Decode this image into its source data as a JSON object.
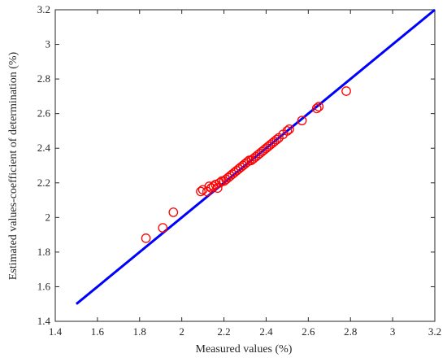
{
  "chart_data": {
    "type": "scatter",
    "title": "",
    "xlabel": "Measured values (%)",
    "ylabel": "Estimated values-coefficient of determination (%)",
    "xlim": [
      1.4,
      3.2
    ],
    "ylim": [
      1.4,
      3.2
    ],
    "xticks": [
      "1.4",
      "1.6",
      "1.8",
      "2",
      "2.2",
      "2.4",
      "2.6",
      "2.8",
      "3",
      "3.2"
    ],
    "yticks": [
      "1.4",
      "1.6",
      "1.8",
      "2",
      "2.2",
      "2.4",
      "2.6",
      "2.8",
      "3",
      "3.2"
    ],
    "grid": false,
    "legend": "none",
    "colors": {
      "points": "#ff0000",
      "line": "#0000ff",
      "axes": "#262626"
    },
    "line": {
      "x": [
        1.5,
        3.2
      ],
      "y": [
        1.5,
        3.2
      ]
    },
    "points": {
      "x": [
        1.83,
        1.91,
        1.96,
        2.09,
        2.1,
        2.12,
        2.13,
        2.14,
        2.15,
        2.16,
        2.17,
        2.18,
        2.19,
        2.2,
        2.21,
        2.22,
        2.23,
        2.24,
        2.25,
        2.26,
        2.27,
        2.28,
        2.29,
        2.3,
        2.31,
        2.32,
        2.33,
        2.34,
        2.35,
        2.36,
        2.37,
        2.38,
        2.39,
        2.4,
        2.41,
        2.42,
        2.43,
        2.44,
        2.45,
        2.46,
        2.48,
        2.5,
        2.51,
        2.57,
        2.64,
        2.65,
        2.78
      ],
      "y": [
        1.88,
        1.94,
        2.03,
        2.15,
        2.16,
        2.15,
        2.18,
        2.17,
        2.18,
        2.19,
        2.17,
        2.2,
        2.21,
        2.21,
        2.22,
        2.23,
        2.24,
        2.25,
        2.26,
        2.27,
        2.28,
        2.29,
        2.3,
        2.31,
        2.32,
        2.33,
        2.33,
        2.34,
        2.35,
        2.36,
        2.37,
        2.38,
        2.39,
        2.4,
        2.41,
        2.42,
        2.43,
        2.44,
        2.45,
        2.46,
        2.48,
        2.5,
        2.51,
        2.56,
        2.63,
        2.64,
        2.73
      ]
    }
  }
}
